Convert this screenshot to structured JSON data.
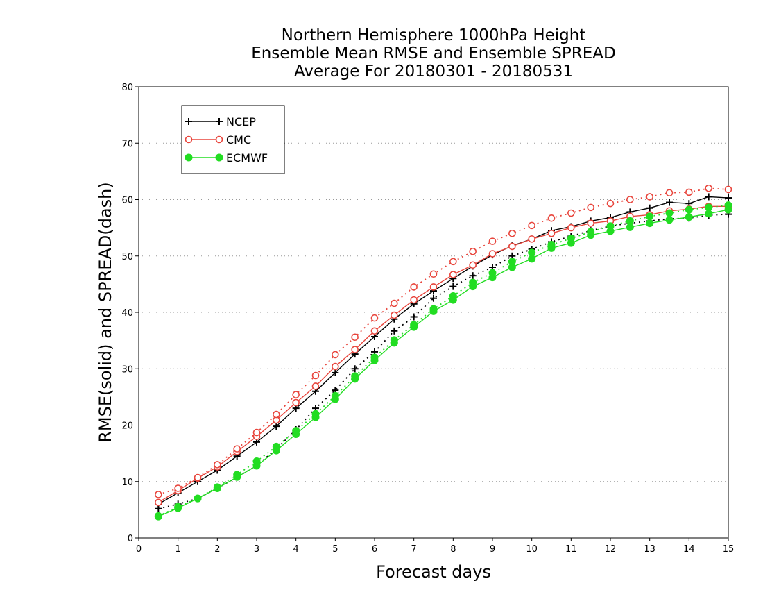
{
  "chart_data": {
    "type": "line",
    "title_lines": [
      "Northern Hemisphere 1000hPa Height",
      "Ensemble Mean RMSE and Ensemble SPREAD",
      "Average For 20180301 - 20180531"
    ],
    "xlabel": "Forecast days",
    "ylabel": "RMSE(solid) and SPREAD(dash)",
    "xlim": [
      0,
      15
    ],
    "ylim": [
      0,
      80
    ],
    "xticks": [
      "0",
      "1",
      "2",
      "3",
      "4",
      "5",
      "6",
      "7",
      "8",
      "9",
      "10",
      "11",
      "12",
      "13",
      "14",
      "15"
    ],
    "yticks": [
      "0",
      "10",
      "20",
      "30",
      "40",
      "50",
      "60",
      "70",
      "80"
    ],
    "grid": "horizontal dotted",
    "legend_position": "top-left",
    "x": [
      0.5,
      1,
      1.5,
      2,
      2.5,
      3,
      3.5,
      4,
      4.5,
      5,
      5.5,
      6,
      6.5,
      7,
      7.5,
      8,
      8.5,
      9,
      9.5,
      10,
      10.5,
      11,
      11.5,
      12,
      12.5,
      13,
      13.5,
      14,
      14.5,
      15
    ],
    "series": [
      {
        "name": "NCEP",
        "color": "#000000",
        "marker": "plus",
        "rmse": [
          6.0,
          8.0,
          10.0,
          12.0,
          14.5,
          17.0,
          19.8,
          23.0,
          26.0,
          29.3,
          32.6,
          35.7,
          38.8,
          41.5,
          43.8,
          46.0,
          48.2,
          50.2,
          51.8,
          53.0,
          54.5,
          55.2,
          56.2,
          56.8,
          57.8,
          58.5,
          59.5,
          59.3,
          60.5,
          60.3
        ],
        "spread": [
          5.2,
          6.0,
          7.0,
          8.8,
          10.8,
          12.8,
          15.8,
          19.2,
          23.0,
          26.2,
          30.0,
          33.0,
          36.7,
          39.2,
          42.5,
          44.6,
          46.5,
          48.0,
          50.0,
          51.2,
          52.5,
          53.5,
          54.5,
          55.3,
          55.8,
          56.2,
          56.6,
          56.7,
          57.2,
          57.4
        ]
      },
      {
        "name": "CMC",
        "color": "#e8453c",
        "marker": "circle-open",
        "rmse": [
          6.3,
          8.4,
          10.6,
          12.6,
          15.3,
          18.0,
          20.9,
          24.0,
          26.9,
          30.4,
          33.4,
          36.7,
          39.5,
          42.2,
          44.5,
          46.7,
          48.4,
          50.4,
          51.7,
          53.0,
          54.0,
          55.0,
          55.8,
          56.2,
          57.0,
          57.3,
          58.0,
          58.3,
          58.8,
          58.8
        ],
        "spread": [
          7.7,
          8.8,
          10.7,
          13.0,
          15.8,
          18.7,
          21.9,
          25.4,
          28.8,
          32.5,
          35.6,
          39.0,
          41.6,
          44.5,
          46.8,
          49.0,
          50.8,
          52.6,
          54.0,
          55.4,
          56.7,
          57.6,
          58.6,
          59.3,
          60.0,
          60.5,
          61.2,
          61.3,
          62.0,
          61.8
        ]
      },
      {
        "name": "ECMWF",
        "color": "#22dd22",
        "marker": "circle-filled",
        "rmse": [
          3.8,
          5.3,
          7.0,
          8.8,
          10.8,
          12.8,
          15.5,
          18.4,
          21.4,
          24.6,
          28.2,
          31.5,
          34.6,
          37.4,
          40.2,
          42.2,
          44.6,
          46.2,
          48.0,
          49.5,
          51.4,
          52.3,
          53.7,
          54.4,
          55.1,
          55.8,
          56.4,
          56.9,
          57.5,
          58.2
        ],
        "spread": [
          3.9,
          5.5,
          7.0,
          9.0,
          11.2,
          13.6,
          16.2,
          19.0,
          22.0,
          25.2,
          28.7,
          32.0,
          35.1,
          37.8,
          40.6,
          42.9,
          45.3,
          47.0,
          49.0,
          50.6,
          52.0,
          53.1,
          54.3,
          55.3,
          56.2,
          57.0,
          57.6,
          58.2,
          58.6,
          59.0
        ]
      }
    ]
  }
}
